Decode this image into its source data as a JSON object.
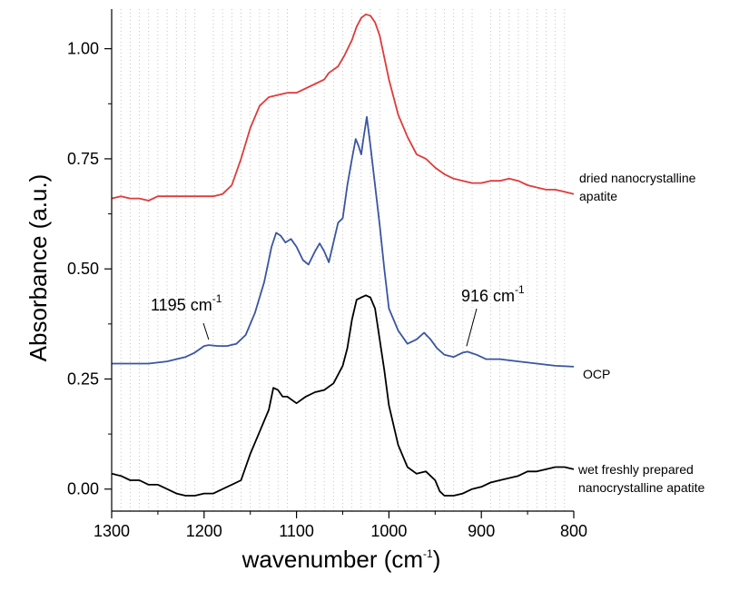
{
  "chart_data": {
    "type": "line",
    "xlabel": "wavenumber (cm",
    "xlabel_sup": "-1",
    "xlabel_close": ")",
    "ylabel": "Absorbance (a.u.)",
    "xlim": [
      1300,
      800
    ],
    "ylim": [
      -0.05,
      1.09
    ],
    "x_reversed": true,
    "grid": "vertical dotted",
    "x_ticks": [
      {
        "value": 1300,
        "label": "1300"
      },
      {
        "value": 1200,
        "label": "1200"
      },
      {
        "value": 1100,
        "label": "1100"
      },
      {
        "value": 1000,
        "label": "1000"
      },
      {
        "value": 900,
        "label": "900"
      },
      {
        "value": 800,
        "label": "800"
      }
    ],
    "y_ticks": [
      {
        "value": 0.0,
        "label": "0.00"
      },
      {
        "value": 0.25,
        "label": "0.25"
      },
      {
        "value": 0.5,
        "label": "0.50"
      },
      {
        "value": 0.75,
        "label": "0.75"
      },
      {
        "value": 1.0,
        "label": "1.00"
      }
    ],
    "series": [
      {
        "name_lines": [
          "dried nanocrystalline",
          "apatite"
        ],
        "color": "#e03a3a",
        "points": [
          [
            1300,
            0.66
          ],
          [
            1290,
            0.665
          ],
          [
            1280,
            0.66
          ],
          [
            1270,
            0.66
          ],
          [
            1260,
            0.655
          ],
          [
            1250,
            0.665
          ],
          [
            1240,
            0.665
          ],
          [
            1230,
            0.665
          ],
          [
            1220,
            0.665
          ],
          [
            1210,
            0.665
          ],
          [
            1200,
            0.665
          ],
          [
            1190,
            0.665
          ],
          [
            1180,
            0.67
          ],
          [
            1170,
            0.69
          ],
          [
            1160,
            0.75
          ],
          [
            1150,
            0.82
          ],
          [
            1140,
            0.87
          ],
          [
            1130,
            0.89
          ],
          [
            1120,
            0.895
          ],
          [
            1110,
            0.9
          ],
          [
            1100,
            0.9
          ],
          [
            1090,
            0.91
          ],
          [
            1080,
            0.92
          ],
          [
            1070,
            0.93
          ],
          [
            1065,
            0.945
          ],
          [
            1055,
            0.96
          ],
          [
            1048,
            0.985
          ],
          [
            1040,
            1.02
          ],
          [
            1035,
            1.05
          ],
          [
            1030,
            1.07
          ],
          [
            1025,
            1.078
          ],
          [
            1020,
            1.075
          ],
          [
            1015,
            1.06
          ],
          [
            1010,
            1.03
          ],
          [
            1000,
            0.93
          ],
          [
            990,
            0.85
          ],
          [
            980,
            0.8
          ],
          [
            970,
            0.76
          ],
          [
            960,
            0.75
          ],
          [
            950,
            0.73
          ],
          [
            940,
            0.715
          ],
          [
            930,
            0.705
          ],
          [
            920,
            0.7
          ],
          [
            910,
            0.695
          ],
          [
            900,
            0.695
          ],
          [
            890,
            0.7
          ],
          [
            880,
            0.7
          ],
          [
            870,
            0.705
          ],
          [
            860,
            0.7
          ],
          [
            850,
            0.69
          ],
          [
            840,
            0.685
          ],
          [
            830,
            0.68
          ],
          [
            820,
            0.68
          ],
          [
            810,
            0.675
          ],
          [
            800,
            0.67
          ]
        ]
      },
      {
        "name_lines": [
          "OCP"
        ],
        "color": "#3a55a0",
        "points": [
          [
            1300,
            0.285
          ],
          [
            1280,
            0.285
          ],
          [
            1260,
            0.285
          ],
          [
            1240,
            0.29
          ],
          [
            1230,
            0.295
          ],
          [
            1220,
            0.3
          ],
          [
            1210,
            0.31
          ],
          [
            1200,
            0.325
          ],
          [
            1195,
            0.327
          ],
          [
            1185,
            0.325
          ],
          [
            1175,
            0.325
          ],
          [
            1165,
            0.33
          ],
          [
            1155,
            0.35
          ],
          [
            1145,
            0.4
          ],
          [
            1135,
            0.47
          ],
          [
            1127,
            0.55
          ],
          [
            1122,
            0.582
          ],
          [
            1117,
            0.575
          ],
          [
            1112,
            0.56
          ],
          [
            1106,
            0.568
          ],
          [
            1100,
            0.55
          ],
          [
            1093,
            0.52
          ],
          [
            1087,
            0.51
          ],
          [
            1080,
            0.54
          ],
          [
            1075,
            0.558
          ],
          [
            1070,
            0.54
          ],
          [
            1065,
            0.515
          ],
          [
            1060,
            0.56
          ],
          [
            1055,
            0.605
          ],
          [
            1050,
            0.615
          ],
          [
            1045,
            0.69
          ],
          [
            1040,
            0.75
          ],
          [
            1036,
            0.795
          ],
          [
            1033,
            0.78
          ],
          [
            1030,
            0.76
          ],
          [
            1028,
            0.79
          ],
          [
            1024,
            0.845
          ],
          [
            1020,
            0.78
          ],
          [
            1015,
            0.69
          ],
          [
            1010,
            0.6
          ],
          [
            1005,
            0.5
          ],
          [
            1000,
            0.41
          ],
          [
            990,
            0.36
          ],
          [
            980,
            0.33
          ],
          [
            970,
            0.34
          ],
          [
            962,
            0.355
          ],
          [
            955,
            0.34
          ],
          [
            948,
            0.32
          ],
          [
            940,
            0.305
          ],
          [
            930,
            0.3
          ],
          [
            920,
            0.31
          ],
          [
            915,
            0.312
          ],
          [
            905,
            0.305
          ],
          [
            895,
            0.295
          ],
          [
            880,
            0.295
          ],
          [
            860,
            0.29
          ],
          [
            840,
            0.285
          ],
          [
            820,
            0.28
          ],
          [
            800,
            0.278
          ]
        ]
      },
      {
        "name_lines": [
          "wet freshly prepared",
          "nanocrystalline apatite"
        ],
        "color": "#000000",
        "points": [
          [
            1300,
            0.035
          ],
          [
            1290,
            0.03
          ],
          [
            1280,
            0.02
          ],
          [
            1270,
            0.02
          ],
          [
            1260,
            0.01
          ],
          [
            1250,
            0.01
          ],
          [
            1240,
            0.0
          ],
          [
            1230,
            -0.01
          ],
          [
            1220,
            -0.015
          ],
          [
            1210,
            -0.015
          ],
          [
            1200,
            -0.01
          ],
          [
            1190,
            -0.01
          ],
          [
            1180,
            0.0
          ],
          [
            1170,
            0.01
          ],
          [
            1160,
            0.02
          ],
          [
            1150,
            0.08
          ],
          [
            1140,
            0.13
          ],
          [
            1130,
            0.18
          ],
          [
            1125,
            0.23
          ],
          [
            1120,
            0.225
          ],
          [
            1115,
            0.21
          ],
          [
            1110,
            0.21
          ],
          [
            1100,
            0.195
          ],
          [
            1090,
            0.21
          ],
          [
            1080,
            0.22
          ],
          [
            1070,
            0.225
          ],
          [
            1060,
            0.24
          ],
          [
            1050,
            0.28
          ],
          [
            1045,
            0.32
          ],
          [
            1040,
            0.385
          ],
          [
            1035,
            0.43
          ],
          [
            1030,
            0.435
          ],
          [
            1025,
            0.44
          ],
          [
            1020,
            0.435
          ],
          [
            1015,
            0.41
          ],
          [
            1010,
            0.34
          ],
          [
            1005,
            0.27
          ],
          [
            1000,
            0.19
          ],
          [
            990,
            0.1
          ],
          [
            980,
            0.05
          ],
          [
            970,
            0.035
          ],
          [
            960,
            0.04
          ],
          [
            950,
            0.02
          ],
          [
            945,
            -0.005
          ],
          [
            940,
            -0.015
          ],
          [
            930,
            -0.015
          ],
          [
            920,
            -0.01
          ],
          [
            910,
            0.0
          ],
          [
            900,
            0.005
          ],
          [
            890,
            0.015
          ],
          [
            880,
            0.02
          ],
          [
            870,
            0.025
          ],
          [
            860,
            0.03
          ],
          [
            850,
            0.04
          ],
          [
            840,
            0.04
          ],
          [
            830,
            0.045
          ],
          [
            820,
            0.05
          ],
          [
            810,
            0.05
          ],
          [
            800,
            0.045
          ]
        ]
      }
    ],
    "annotations": [
      {
        "text": "1195 cm",
        "sup": "-1",
        "point": [
          1195,
          0.327
        ]
      },
      {
        "text": "916 cm",
        "sup": "-1",
        "point": [
          916,
          0.312
        ]
      }
    ]
  }
}
